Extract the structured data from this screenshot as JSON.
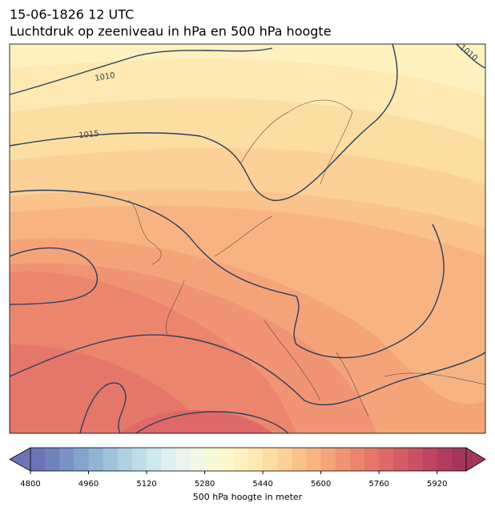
{
  "title": {
    "time": "15-06-1826 12 UTC",
    "subtitle": "Luchtdruk op zeeniveau in hPa en 500 hPa hoogte"
  },
  "map": {
    "isobar_labels": [
      "1010",
      "1015",
      "1010"
    ]
  },
  "colorbar": {
    "label": "500 hPa hoogte in meter",
    "lim": [
      4800,
      6000
    ],
    "ticks": [
      4800,
      4960,
      5120,
      5280,
      5440,
      5600,
      5760,
      5920
    ],
    "colors": [
      "#6b74b6",
      "#7182bd",
      "#7a93c4",
      "#84a4cb",
      "#90b4d3",
      "#9fc3da",
      "#aed2e2",
      "#bfdde9",
      "#cfe7ef",
      "#dff0f3",
      "#e9f4ef",
      "#f2f8e6",
      "#f8f9d8",
      "#fcf8cc",
      "#fdf2bf",
      "#fde9b1",
      "#fcdea3",
      "#fbd197",
      "#f9c38b",
      "#f7b482",
      "#f5a47a",
      "#f19474",
      "#ec856e",
      "#e5776a",
      "#de6967",
      "#d55c65",
      "#cb5063",
      "#bf4562",
      "#b23c5f",
      "#a4365c"
    ]
  }
}
